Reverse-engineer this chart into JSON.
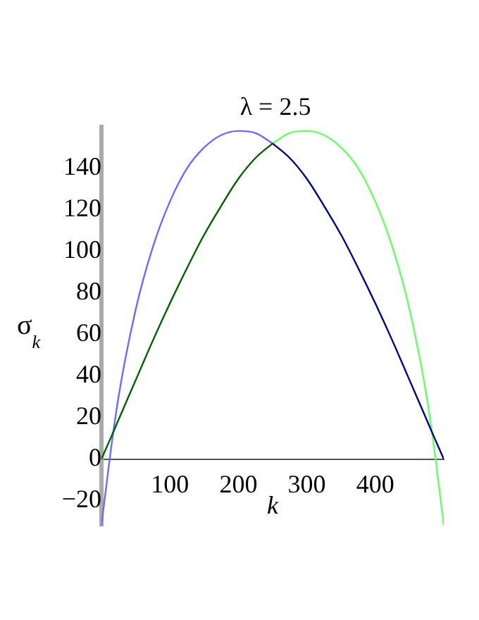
{
  "chart_data": {
    "type": "line",
    "title": "λ = 2.5",
    "xlabel": "k",
    "ylabel": "σ$_{k}$",
    "xlim": [
      0,
      500
    ],
    "xticks": [
      100,
      200,
      300,
      400
    ],
    "ylim": [
      -32,
      160
    ],
    "yticks": [
      -20,
      0,
      20,
      40,
      60,
      80,
      100,
      120,
      140
    ],
    "grid": false,
    "legend": false,
    "marker": "none",
    "line_style": "solid",
    "series": [
      {
        "color": "#6a6aff",
        "x": [
          0,
          12,
          25,
          50,
          75,
          100,
          125,
          150,
          175,
          200,
          225,
          250
        ],
        "values": [
          -32,
          0,
          30,
          72,
          102,
          124,
          140,
          150,
          156,
          158,
          157,
          152
        ]
      },
      {
        "color": "#66ff66",
        "x": [
          250,
          275,
          300,
          325,
          350,
          375,
          400,
          425,
          450,
          475,
          488,
          500
        ],
        "values": [
          152,
          157,
          158,
          156,
          150,
          140,
          124,
          102,
          72,
          30,
          0,
          -32
        ]
      },
      {
        "color": "#006000",
        "x": [
          0,
          12,
          25,
          50,
          75,
          100,
          125,
          150,
          175,
          200,
          225,
          250
        ],
        "values": [
          0,
          9,
          19,
          38,
          57,
          75,
          92,
          108,
          122,
          135,
          145,
          152
        ]
      },
      {
        "color": "#000090",
        "x": [
          250,
          275,
          300,
          325,
          350,
          375,
          400,
          425,
          450,
          475,
          488,
          500
        ],
        "values": [
          152,
          145,
          135,
          122,
          108,
          92,
          75,
          57,
          38,
          19,
          9,
          0
        ]
      }
    ]
  }
}
